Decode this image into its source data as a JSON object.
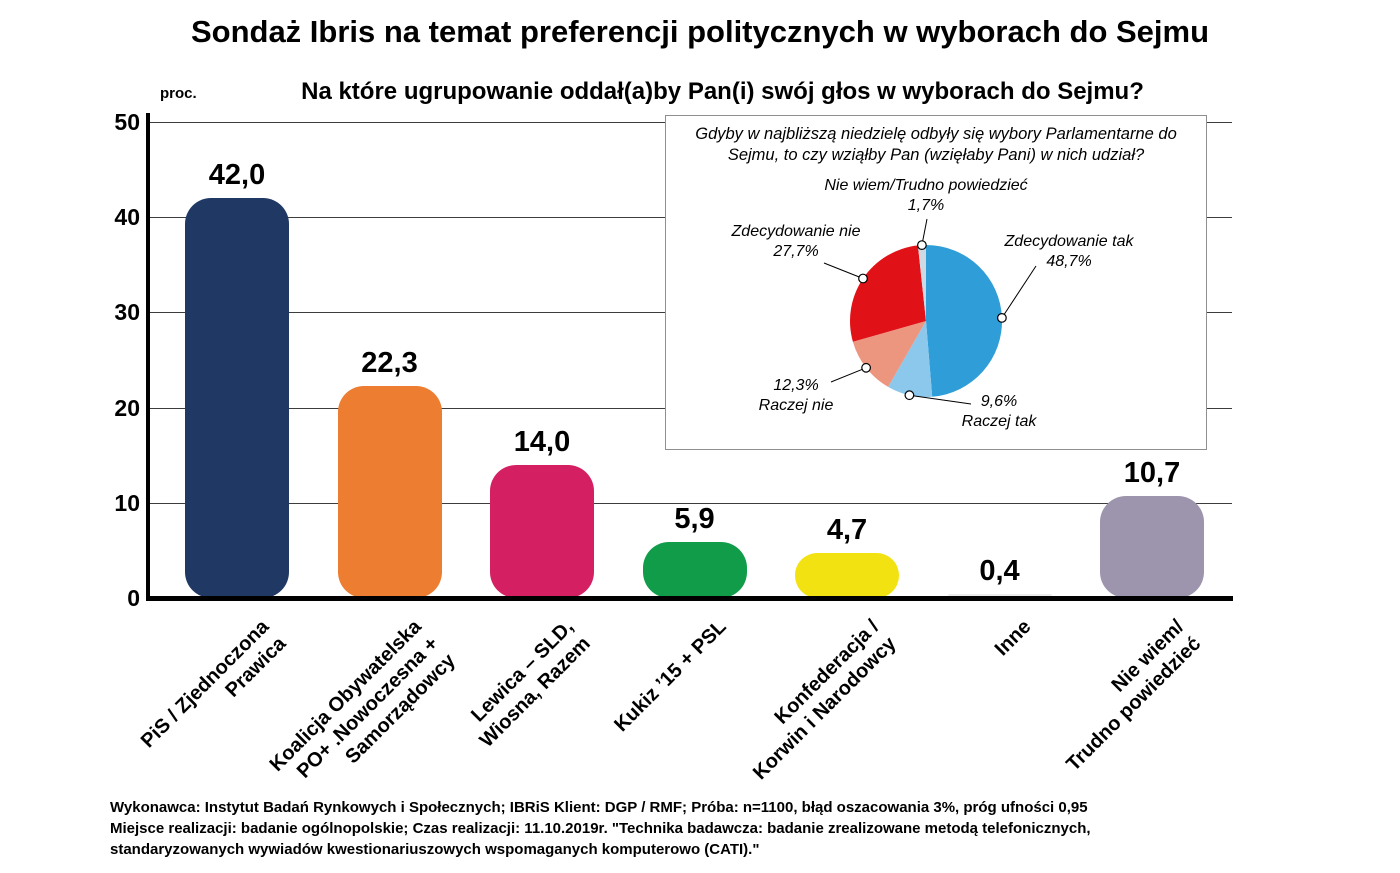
{
  "page": {
    "title": "Sondaż Ibris na temat preferencji politycznych w wyborach do Sejmu",
    "footer_lines": [
      "Wykonawca: Instytut Badań Rynkowych i Społecznych; IBRiS Klient: DGP / RMF; Próba: n=1100, błąd oszacowania 3%, próg ufności 0,95",
      "Miejsce realizacji: badanie ogólnopolskie; Czas realizacji: 11.10.2019r. \"Technika badawcza: badanie zrealizowane metodą telefonicznych,",
      "standaryzowanych wywiadów kwestionariuszowych wspomaganych komputerowo (CATI).\""
    ]
  },
  "chart_data": [
    {
      "type": "bar",
      "title": "Na które ugrupowanie oddał(a)by Pan(i) swój głos w wyborach do Sejmu?",
      "xlabel": "",
      "ylabel": "proc.",
      "ylim": [
        0,
        50
      ],
      "yticks": [
        0,
        10,
        20,
        30,
        40,
        50
      ],
      "grid": true,
      "categories": [
        "PiS / Zjednoczona Prawica",
        "Koalicja Obywatelska PO+ .Nowoczesna + Samorządowcy",
        "Lewica – SLD, Wiosna, Razem",
        "Kukiz ’15 + PSL",
        "Konfederacja / Korwin i Narodowcy",
        "Inne",
        "Nie wiem/ Trudno powiedzieć"
      ],
      "category_lines": [
        [
          "PiS / Zjednoczona",
          "Prawica"
        ],
        [
          "Koalicja Obywatelska",
          "PO+ .Nowoczesna +",
          "Samorządowcy"
        ],
        [
          "Lewica – SLD,",
          "Wiosna, Razem"
        ],
        [
          "Kukiz ’15 + PSL"
        ],
        [
          "Konfederacja /",
          "Korwin i Narodowcy"
        ],
        [
          "Inne"
        ],
        [
          "Nie wiem/",
          "Trudno powiedzieć"
        ]
      ],
      "values": [
        42.0,
        22.3,
        14.0,
        5.9,
        4.7,
        0.4,
        10.7
      ],
      "value_labels": [
        "42,0",
        "22,3",
        "14,0",
        "5,9",
        "4,7",
        "0,4",
        "10,7"
      ],
      "bar_colors": [
        "#1f3864",
        "#ed7d31",
        "#d41f62",
        "#119c49",
        "#f2e211",
        "#ececec",
        "#9d95ad"
      ]
    },
    {
      "type": "pie",
      "title": "Gdyby w najbliższą niedzielę odbyły się wybory Parlamentarne do Sejmu, to czy wziąłby Pan (wzięłaby Pani) w nich udział?",
      "labels": [
        "Zdecydowanie tak",
        "Raczej tak",
        "Raczej nie",
        "Zdecydowanie nie",
        "Nie wiem/Trudno powiedzieć"
      ],
      "values": [
        48.7,
        9.6,
        12.3,
        27.7,
        1.7
      ],
      "value_labels": [
        "48,7%",
        "9,6%",
        "12,3%",
        "27,7%",
        "1,7%"
      ],
      "colors": [
        "#2f9ed8",
        "#8cc7ec",
        "#ec9680",
        "#e01218",
        "#cfd9e2"
      ]
    }
  ]
}
